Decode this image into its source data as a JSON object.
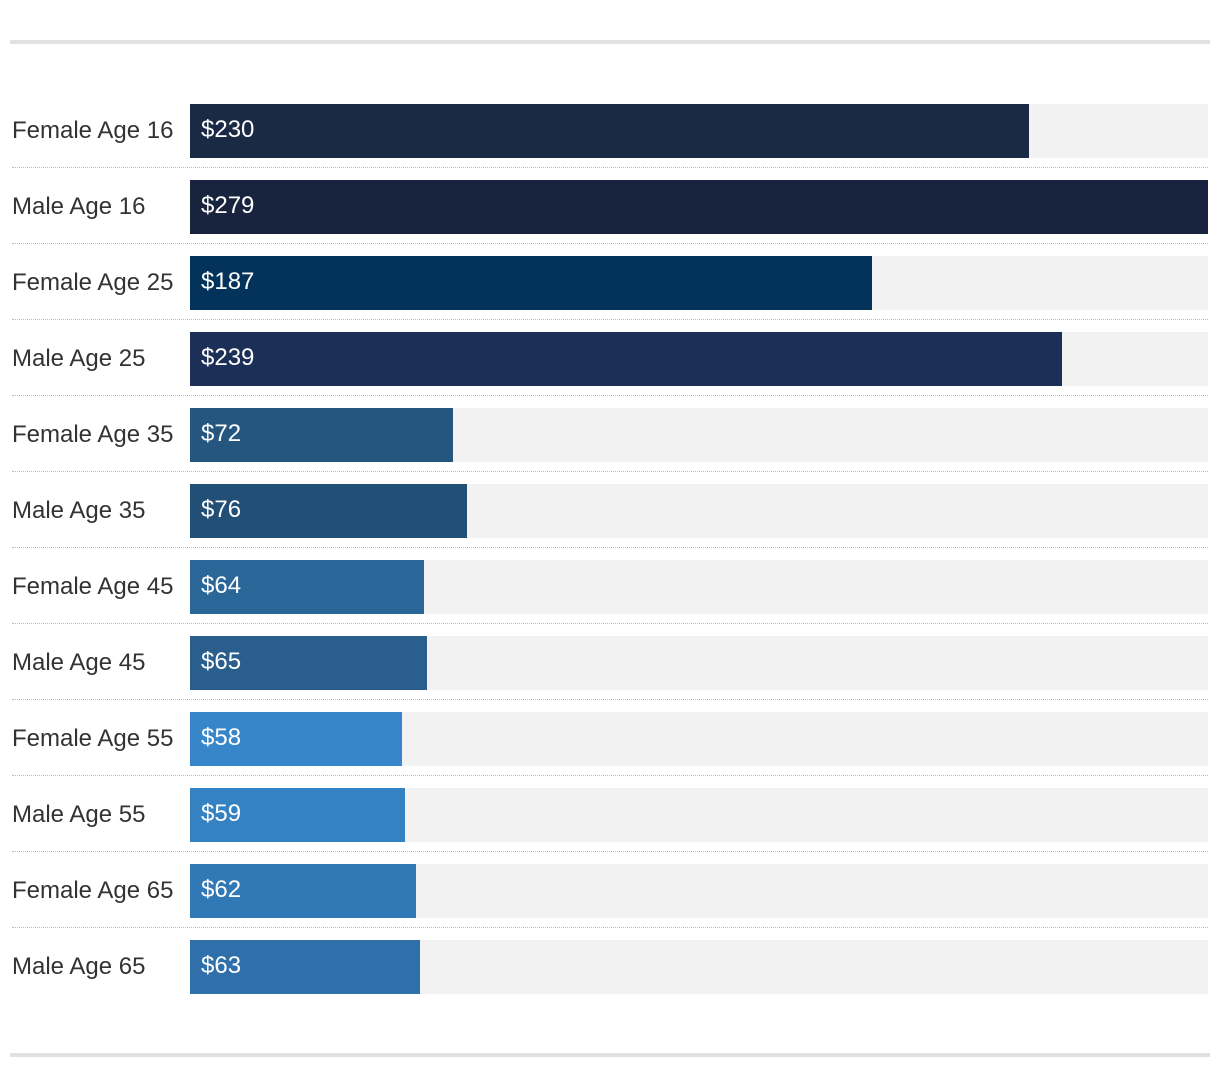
{
  "chart_data": {
    "type": "bar",
    "orientation": "horizontal",
    "title": "",
    "xlabel": "",
    "ylabel": "",
    "xlim": [
      0,
      279
    ],
    "grid": false,
    "value_prefix": "$",
    "categories": [
      "Female Age 16",
      "Male Age 16",
      "Female Age 25",
      "Male Age 25",
      "Female Age 35",
      "Male Age 35",
      "Female Age 45",
      "Male Age 45",
      "Female Age 55",
      "Male Age 55",
      "Female Age 65",
      "Male Age 65"
    ],
    "values": [
      230,
      279,
      187,
      239,
      72,
      76,
      64,
      65,
      58,
      59,
      62,
      63
    ],
    "value_labels": [
      "$230",
      "$279",
      "$187",
      "$239",
      "$72",
      "$76",
      "$64",
      "$65",
      "$58",
      "$59",
      "$62",
      "$63"
    ],
    "colors": [
      "#1b2a44",
      "#18243d",
      "#03325a",
      "#1c2f56",
      "#24567f",
      "#214f76",
      "#2b6698",
      "#2a5f8d",
      "#3886ca",
      "#3582c3",
      "#3178b6",
      "#2f70aa"
    ],
    "track_color": "#f2f2f2"
  }
}
